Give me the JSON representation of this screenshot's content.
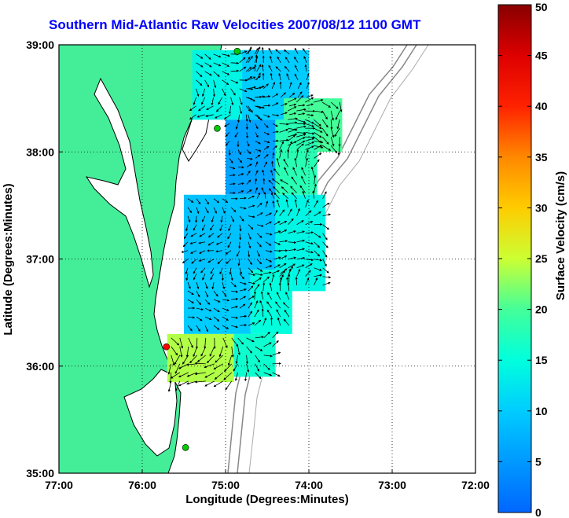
{
  "chart_data": {
    "type": "heatmap",
    "title": "Southern Mid-Atlantic Raw Velocities 2007/08/12 1100 GMT",
    "xlabel": "Longitude (Degrees:Minutes)",
    "ylabel": "Latitude (Degrees:Minutes)",
    "xlim": [
      -77,
      -72
    ],
    "ylim": [
      35,
      39
    ],
    "x_ticks": [
      {
        "value": -77,
        "label": "77:00"
      },
      {
        "value": -76,
        "label": "76:00"
      },
      {
        "value": -75,
        "label": "75:00"
      },
      {
        "value": -74,
        "label": "74:00"
      },
      {
        "value": -73,
        "label": "73:00"
      },
      {
        "value": -72,
        "label": "72:00"
      }
    ],
    "y_ticks": [
      {
        "value": 35,
        "label": "35:00"
      },
      {
        "value": 36,
        "label": "36:00"
      },
      {
        "value": 37,
        "label": "37:00"
      },
      {
        "value": 38,
        "label": "38:00"
      },
      {
        "value": 39,
        "label": "39:00"
      }
    ],
    "grid": true,
    "colorbar": {
      "label": "Surface Velocity (cm/s)",
      "min": 0,
      "max": 50,
      "ticks": [
        0,
        5,
        10,
        15,
        20,
        25,
        30,
        35,
        40,
        45,
        50
      ]
    },
    "stations": [
      {
        "lon": -74.86,
        "lat": 38.94,
        "color": "#00cc00"
      },
      {
        "lon": -75.1,
        "lat": 38.22,
        "color": "#00cc00"
      },
      {
        "lon": -75.71,
        "lat": 36.18,
        "color": "#ff0000"
      },
      {
        "lon": -75.48,
        "lat": 35.24,
        "color": "#00cc00"
      }
    ],
    "velocity_regions": [
      {
        "lon_range": [
          -75.4,
          -74.6
        ],
        "lat_range": [
          38.3,
          38.95
        ],
        "speed_cm_s": 14
      },
      {
        "lon_range": [
          -74.8,
          -74.0
        ],
        "lat_range": [
          38.3,
          38.95
        ],
        "speed_cm_s": 10
      },
      {
        "lon_range": [
          -74.3,
          -73.6
        ],
        "lat_range": [
          38.0,
          38.5
        ],
        "speed_cm_s": 20
      },
      {
        "lon_range": [
          -75.0,
          -74.4
        ],
        "lat_range": [
          37.6,
          38.3
        ],
        "speed_cm_s": 6
      },
      {
        "lon_range": [
          -74.4,
          -73.9
        ],
        "lat_range": [
          37.6,
          38.3
        ],
        "speed_cm_s": 18
      },
      {
        "lon_range": [
          -75.5,
          -74.4
        ],
        "lat_range": [
          36.9,
          37.6
        ],
        "speed_cm_s": 9
      },
      {
        "lon_range": [
          -74.4,
          -73.8
        ],
        "lat_range": [
          36.7,
          37.6
        ],
        "speed_cm_s": 14
      },
      {
        "lon_range": [
          -75.5,
          -74.7
        ],
        "lat_range": [
          36.3,
          36.9
        ],
        "speed_cm_s": 10
      },
      {
        "lon_range": [
          -74.7,
          -74.2
        ],
        "lat_range": [
          36.3,
          36.9
        ],
        "speed_cm_s": 15
      },
      {
        "lon_range": [
          -75.7,
          -74.9
        ],
        "lat_range": [
          35.85,
          36.3
        ],
        "speed_cm_s": 24
      },
      {
        "lon_range": [
          -74.9,
          -74.4
        ],
        "lat_range": [
          35.9,
          36.3
        ],
        "speed_cm_s": 16
      }
    ]
  }
}
